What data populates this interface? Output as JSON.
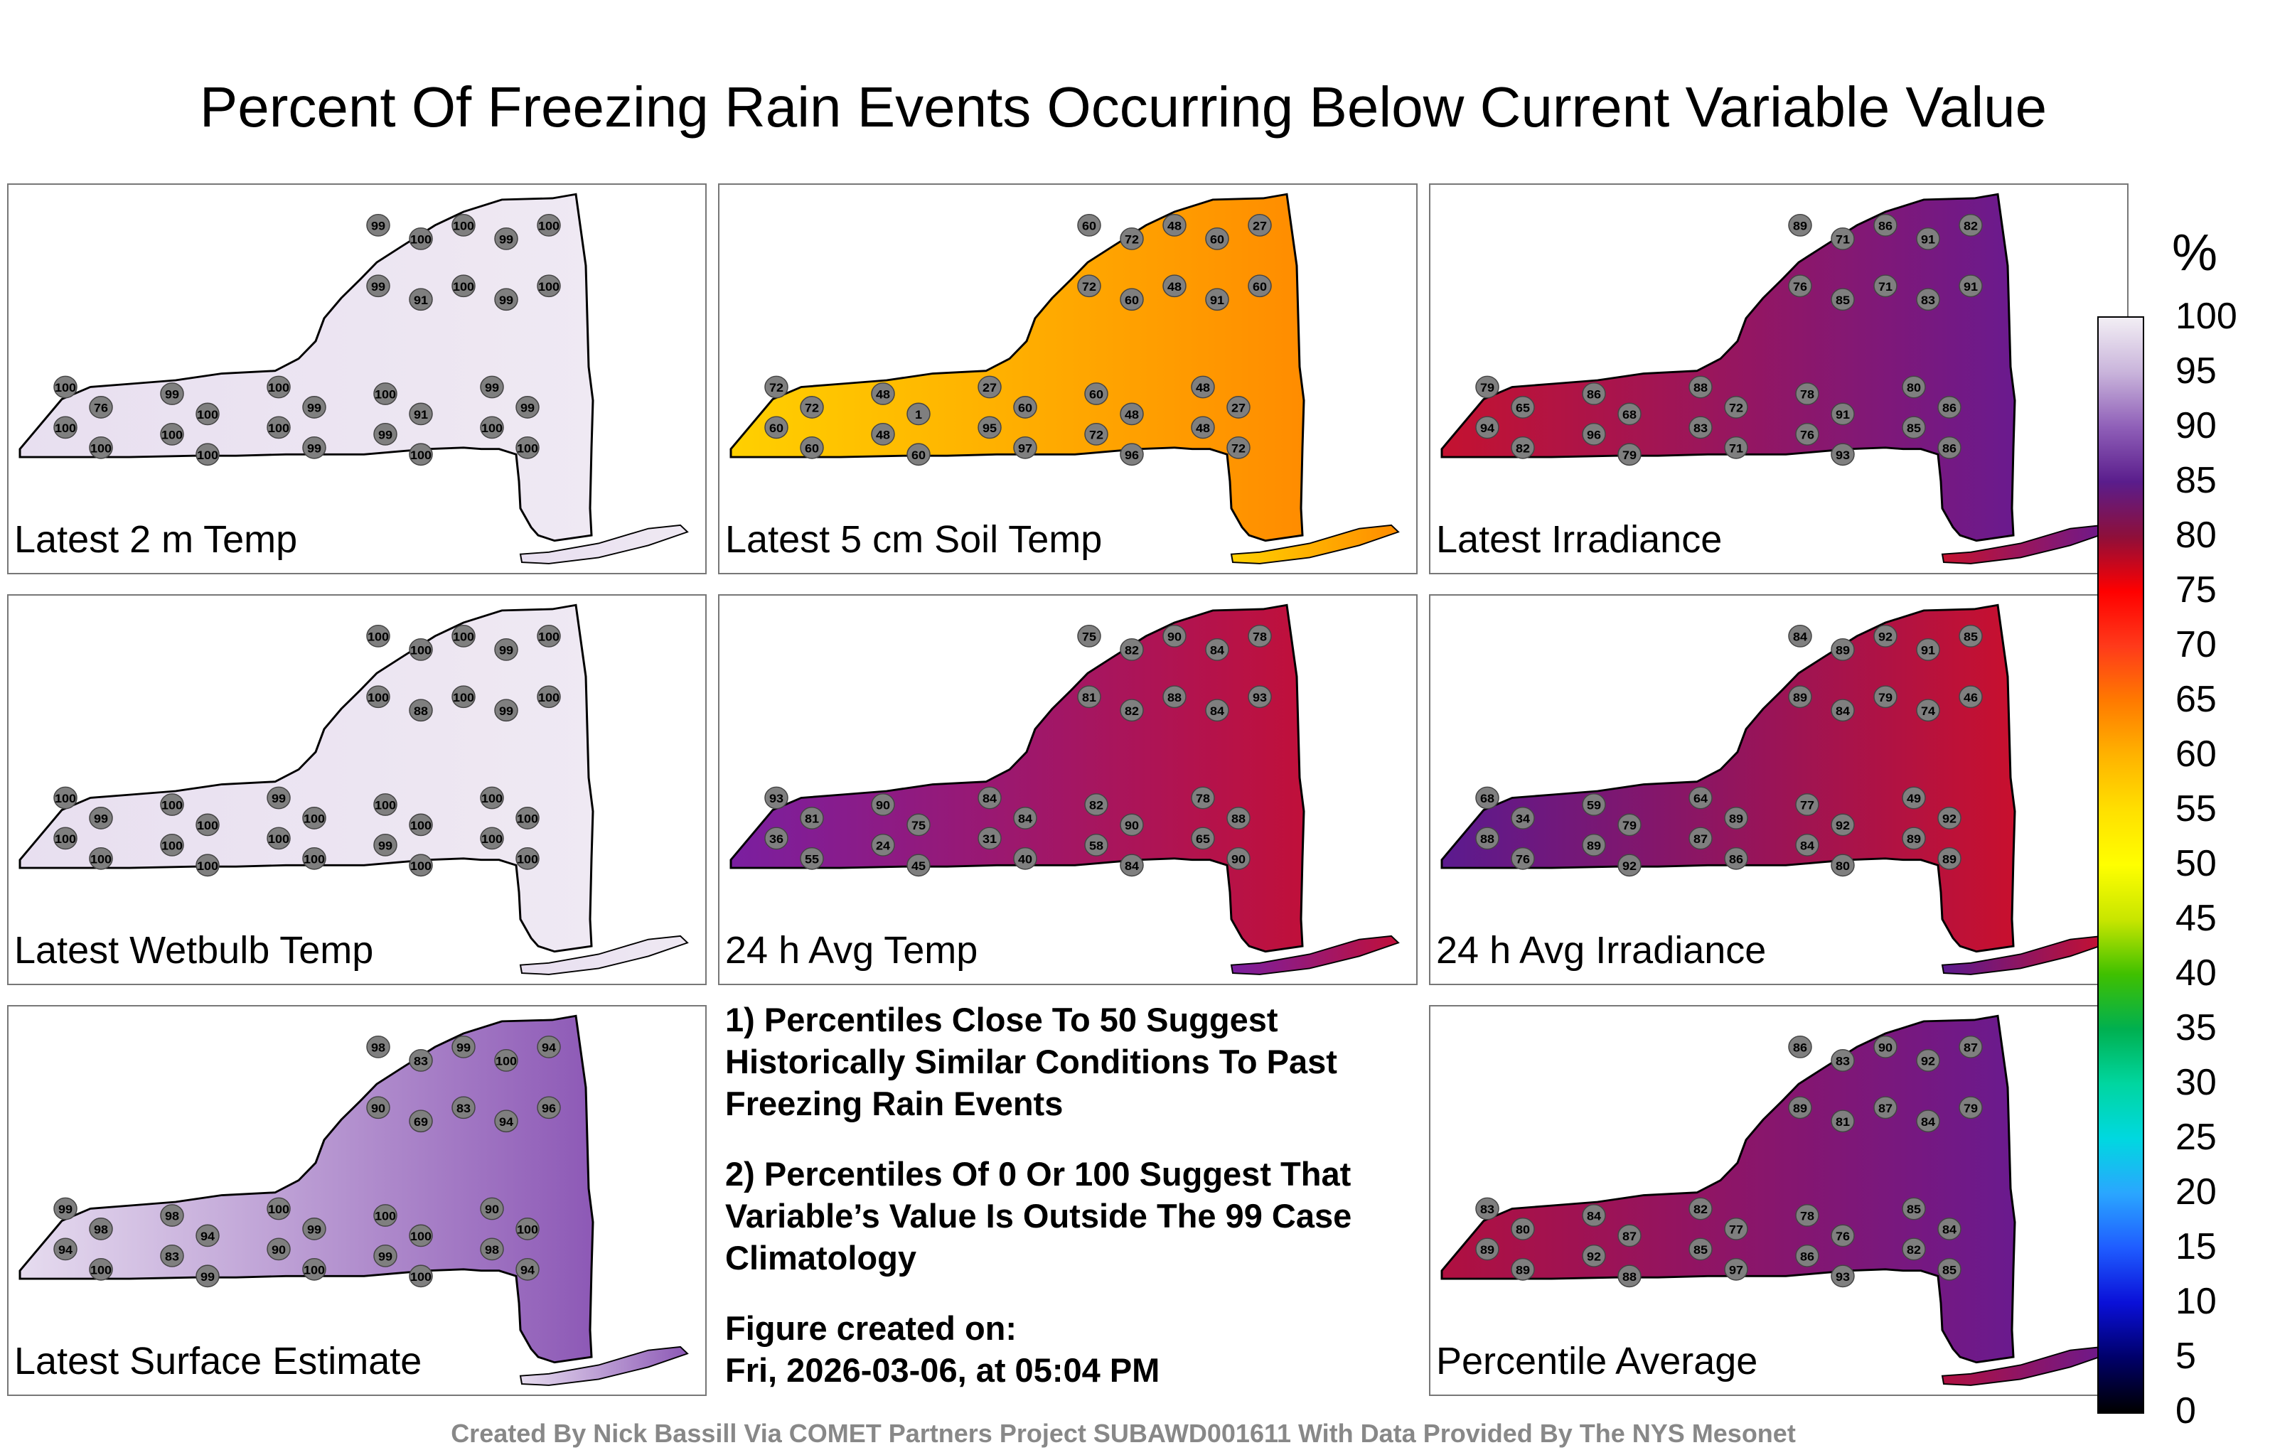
{
  "title": "Percent Of Freezing Rain Events Occurring Below Current Variable Value",
  "panels": [
    {
      "label": "Latest 2 m Temp",
      "mode": "light",
      "values": [
        99,
        100,
        100,
        99,
        100,
        99,
        91,
        100,
        99,
        100,
        100,
        99,
        100,
        100,
        99,
        76,
        100,
        99,
        91,
        99,
        100,
        100,
        100,
        99,
        100,
        100,
        100,
        99,
        100,
        100
      ]
    },
    {
      "label": "Latest 5 cm Soil Temp",
      "mode": "soil",
      "values": [
        60,
        72,
        48,
        60,
        27,
        72,
        60,
        48,
        91,
        60,
        72,
        48,
        27,
        60,
        48,
        72,
        1,
        60,
        48,
        27,
        60,
        48,
        95,
        72,
        48,
        60,
        60,
        97,
        96,
        72
      ]
    },
    {
      "label": "Latest Irradiance",
      "mode": "irr",
      "values": [
        89,
        71,
        86,
        91,
        82,
        76,
        85,
        71,
        83,
        91,
        79,
        86,
        88,
        78,
        80,
        65,
        68,
        72,
        91,
        86,
        94,
        96,
        83,
        76,
        85,
        82,
        79,
        71,
        93,
        86
      ]
    },
    {
      "label": "Latest Wetbulb Temp",
      "mode": "light",
      "values": [
        100,
        100,
        100,
        99,
        100,
        100,
        88,
        100,
        99,
        100,
        100,
        100,
        99,
        100,
        100,
        99,
        100,
        100,
        100,
        100,
        100,
        100,
        100,
        99,
        100,
        100,
        100,
        100,
        100,
        100
      ]
    },
    {
      "label": "24 h Avg Temp",
      "mode": "temp",
      "values": [
        75,
        82,
        90,
        84,
        78,
        81,
        82,
        88,
        84,
        93,
        93,
        90,
        84,
        82,
        78,
        81,
        75,
        84,
        90,
        88,
        36,
        24,
        31,
        58,
        65,
        55,
        45,
        40,
        84,
        90
      ]
    },
    {
      "label": "24 h Avg Irradiance",
      "mode": "irr2",
      "values": [
        84,
        89,
        92,
        91,
        85,
        89,
        84,
        79,
        74,
        46,
        68,
        59,
        64,
        77,
        49,
        34,
        79,
        89,
        92,
        92,
        88,
        89,
        87,
        84,
        89,
        76,
        92,
        86,
        80,
        89
      ]
    },
    {
      "label": "Latest Surface Estimate",
      "mode": "surf",
      "values": [
        98,
        83,
        99,
        100,
        94,
        90,
        69,
        83,
        94,
        96,
        99,
        98,
        100,
        100,
        90,
        98,
        94,
        99,
        100,
        100,
        94,
        83,
        90,
        99,
        98,
        100,
        99,
        100,
        100,
        94
      ]
    },
    {
      "label": "Percentile Average",
      "mode": "avg",
      "values": [
        86,
        83,
        90,
        92,
        87,
        89,
        81,
        87,
        84,
        79,
        83,
        84,
        82,
        78,
        85,
        80,
        87,
        77,
        76,
        84,
        89,
        92,
        85,
        86,
        82,
        89,
        88,
        97,
        93,
        85
      ]
    }
  ],
  "notes": {
    "note1": "1) Percentiles Close To 50 Suggest Historically Similar Conditions To Past Freezing Rain Events",
    "note2": "2) Percentiles Of 0 Or 100 Suggest That Variable’s Value Is Outside The 99 Case Climatology",
    "created_label": "Figure created on:",
    "created_date": "Fri, 2026-03-06, at 05:04 PM"
  },
  "colorbar": {
    "unit": "%",
    "ticks": [
      "100",
      "95",
      "90",
      "85",
      "80",
      "75",
      "70",
      "65",
      "60",
      "55",
      "50",
      "45",
      "40",
      "35",
      "30",
      "25",
      "20",
      "15",
      "10",
      "5",
      "0"
    ]
  },
  "footer": "Created By Nick Bassill Via COMET Partners Project SUBAWD001611 With Data Provided By The NYS Mesonet"
}
